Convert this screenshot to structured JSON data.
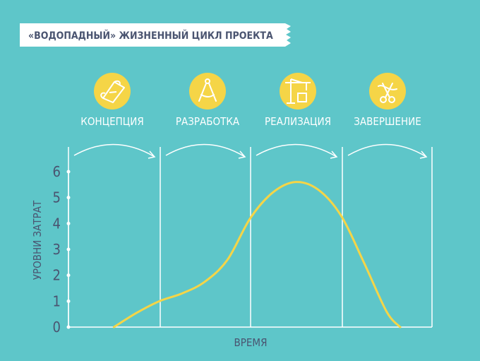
{
  "title": "«ВОДОПАДНЫЙ» ЖИЗНЕННЫЙ ЦИКЛ ПРОЕКТА",
  "colors": {
    "background": "#5ec6c9",
    "accent": "#f5d547",
    "line": "#f5d547",
    "ink": "#4a5470",
    "white": "#ffffff"
  },
  "phases": [
    {
      "label": "КОНЦЕПЦИЯ",
      "icon": "scroll-icon"
    },
    {
      "label": "РАЗРАБОТКА",
      "icon": "compass-icon"
    },
    {
      "label": "РЕАЛИЗАЦИЯ",
      "icon": "crane-icon"
    },
    {
      "label": "ЗАВЕРШЕНИЕ",
      "icon": "ribbon-scissors-icon"
    }
  ],
  "chart_data": {
    "type": "line",
    "title": "",
    "xlabel": "ВРЕМЯ",
    "ylabel": "УРОВНИ ЗАТРАТ",
    "ylim": [
      0,
      6
    ],
    "xlim": [
      0,
      4
    ],
    "yticks": [
      "0",
      "1",
      "2",
      "3",
      "4",
      "5",
      "6"
    ],
    "grid": false,
    "series": [
      {
        "x": [
          0.5,
          0.75,
          1.0,
          1.25,
          1.5,
          1.75,
          2.0,
          2.25,
          2.5,
          2.75,
          3.0,
          3.25,
          3.5,
          3.65
        ],
        "y": [
          0.0,
          0.55,
          1.0,
          1.3,
          1.75,
          2.6,
          4.2,
          5.2,
          5.6,
          5.3,
          4.3,
          2.5,
          0.6,
          0.0
        ]
      }
    ]
  }
}
